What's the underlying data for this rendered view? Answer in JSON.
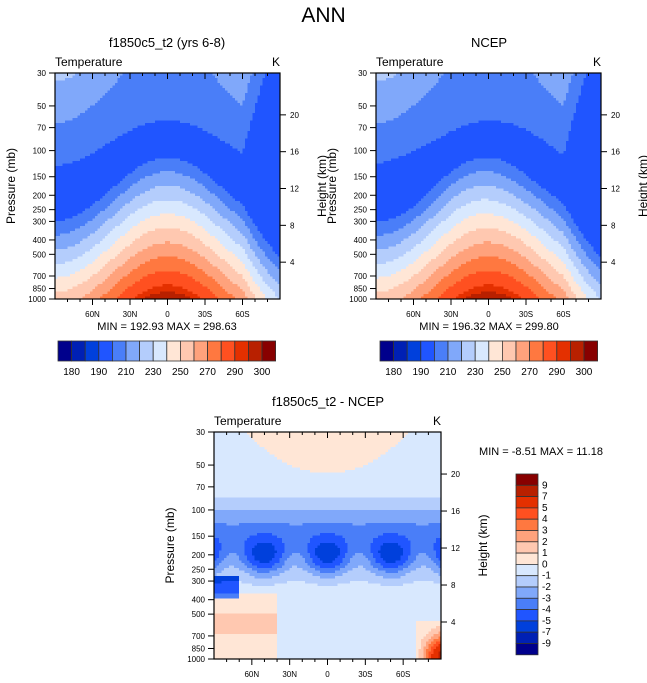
{
  "figure_title": "ANN",
  "colors": {
    "abs_palette": [
      "#00008c",
      "#0020b4",
      "#0040dc",
      "#2055ff",
      "#4a7ef8",
      "#80a8fa",
      "#b4cdfc",
      "#d8e8fe",
      "#ffe6d6",
      "#ffc8b0",
      "#ffa27c",
      "#ff7840",
      "#ff5020",
      "#e43000",
      "#b82000",
      "#880000"
    ],
    "diff_palette": [
      "#00008c",
      "#0020b4",
      "#0040dc",
      "#2055ff",
      "#4a7ef8",
      "#80a8fa",
      "#b4cdfc",
      "#d8e8fe",
      "#ffe6d6",
      "#ffc8b0",
      "#ffa27c",
      "#ff7840",
      "#ff5020",
      "#e43000",
      "#b82000",
      "#880000"
    ]
  },
  "chart_data": [
    {
      "type": "heatmap",
      "id": "model",
      "title": "f1850c5_t2 (yrs 6-8)",
      "left_label": "Temperature",
      "right_label": "K",
      "ylabel": "Pressure (mb)",
      "ylabel_right": "Height (km)",
      "x_ticks": [
        "60N",
        "30N",
        "0",
        "30S",
        "60S"
      ],
      "x_tick_values": [
        60,
        30,
        0,
        -30,
        -60
      ],
      "xlim": [
        90,
        -90
      ],
      "y_ticks": [
        30,
        50,
        70,
        100,
        150,
        200,
        250,
        300,
        400,
        500,
        700,
        850,
        1000
      ],
      "ylim": [
        30,
        1000
      ],
      "y_scale": "log",
      "height_ticks": [
        4,
        8,
        12,
        16,
        20
      ],
      "stats": "MIN = 192.93  MAX = 298.63",
      "min": 192.93,
      "max": 298.63,
      "colorbar_labels": [
        "180",
        "190",
        "210",
        "230",
        "250",
        "270",
        "290",
        "300"
      ],
      "colorbar_levels": [
        180,
        185,
        190,
        200,
        210,
        220,
        230,
        240,
        250,
        260,
        270,
        280,
        290,
        295,
        300
      ],
      "field": "zonal mean temperature; cold core ~200K near 100mb at equator, warmest ~298K at surface equator"
    },
    {
      "type": "heatmap",
      "id": "obs",
      "title": "NCEP",
      "left_label": "Temperature",
      "right_label": "K",
      "ylabel": "Pressure (mb)",
      "ylabel_right": "Height (km)",
      "x_ticks": [
        "60N",
        "30N",
        "0",
        "30S",
        "60S"
      ],
      "x_tick_values": [
        60,
        30,
        0,
        -30,
        -60
      ],
      "xlim": [
        90,
        -90
      ],
      "y_ticks": [
        30,
        50,
        70,
        100,
        150,
        200,
        250,
        300,
        400,
        500,
        700,
        850,
        1000
      ],
      "ylim": [
        30,
        1000
      ],
      "y_scale": "log",
      "height_ticks": [
        4,
        8,
        12,
        16,
        20
      ],
      "stats": "MIN = 196.32  MAX = 299.80",
      "min": 196.32,
      "max": 299.8,
      "colorbar_labels": [
        "180",
        "190",
        "210",
        "230",
        "250",
        "270",
        "290",
        "300"
      ],
      "colorbar_levels": [
        180,
        185,
        190,
        200,
        210,
        220,
        230,
        240,
        250,
        260,
        270,
        280,
        290,
        295,
        300
      ]
    },
    {
      "type": "heatmap",
      "id": "diff",
      "title": "f1850c5_t2 - NCEP",
      "left_label": "Temperature",
      "right_label": "K",
      "ylabel": "Pressure (mb)",
      "ylabel_right": "Height (km)",
      "x_ticks": [
        "60N",
        "30N",
        "0",
        "30S",
        "60S"
      ],
      "x_tick_values": [
        60,
        30,
        0,
        -30,
        -60
      ],
      "xlim": [
        90,
        -90
      ],
      "y_ticks": [
        30,
        50,
        70,
        100,
        150,
        200,
        250,
        300,
        400,
        500,
        700,
        850,
        1000
      ],
      "ylim": [
        30,
        1000
      ],
      "y_scale": "log",
      "height_ticks": [
        4,
        8,
        12,
        16,
        20
      ],
      "stats": "MIN =  -8.51  MAX =  11.18",
      "min": -8.51,
      "max": 11.18,
      "colorbar_labels": [
        "9",
        "7",
        "5",
        "4",
        "3",
        "2",
        "1",
        "0",
        "-1",
        "-2",
        "-3",
        "-4",
        "-5",
        "-7",
        "-9"
      ],
      "colorbar_levels": [
        -9,
        -7,
        -5,
        -4,
        -3,
        -2,
        -1,
        0,
        1,
        2,
        3,
        4,
        5,
        7,
        9
      ]
    }
  ]
}
